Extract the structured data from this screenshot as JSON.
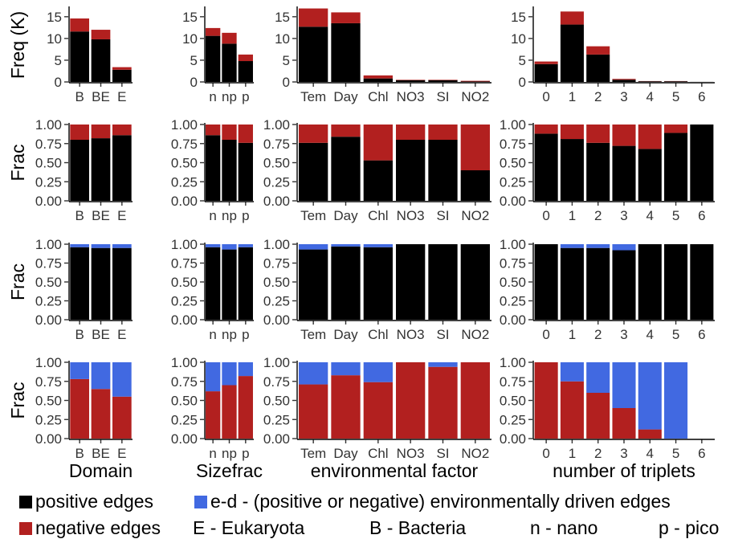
{
  "colors": {
    "positive": "#000000",
    "negative": "#b2201f",
    "env": "#4169e1"
  },
  "chart_data": {
    "type": "bar",
    "layout": "faceted stacked bar grid (4 rows x 4 columns)",
    "grid": false,
    "row_labels": [
      "Freq (K)",
      "Frac",
      "Frac",
      "Frac"
    ],
    "panels": [
      {
        "row": 0,
        "col": 0,
        "categories": [
          "B",
          "BE",
          "E"
        ],
        "ylim": [
          0,
          17
        ],
        "yticks": [
          0,
          5,
          10,
          15
        ],
        "series": [
          {
            "name": "positive edges",
            "values": [
              11.6,
              9.8,
              2.8
            ]
          },
          {
            "name": "negative edges",
            "values": [
              3.0,
              2.2,
              0.6
            ]
          }
        ]
      },
      {
        "row": 0,
        "col": 1,
        "categories": [
          "n",
          "np",
          "p"
        ],
        "ylim": [
          0,
          17
        ],
        "yticks": [
          0,
          5,
          10,
          15
        ],
        "series": [
          {
            "name": "positive edges",
            "values": [
              10.6,
              8.8,
              4.8
            ]
          },
          {
            "name": "negative edges",
            "values": [
              1.8,
              2.5,
              1.5
            ]
          }
        ]
      },
      {
        "row": 0,
        "col": 2,
        "categories": [
          "Tem",
          "Day",
          "Chl",
          "NO3",
          "SI",
          "NO2"
        ],
        "ylim": [
          0,
          17
        ],
        "yticks": [
          0,
          5,
          10,
          15
        ],
        "series": [
          {
            "name": "positive edges",
            "values": [
              12.7,
              13.5,
              0.8,
              0.4,
              0.4,
              0.1
            ]
          },
          {
            "name": "negative edges",
            "values": [
              4.2,
              2.5,
              0.7,
              0.1,
              0.1,
              0.15
            ]
          }
        ]
      },
      {
        "row": 0,
        "col": 3,
        "categories": [
          "0",
          "1",
          "2",
          "3",
          "4",
          "5",
          "6"
        ],
        "ylim": [
          0,
          17
        ],
        "yticks": [
          0,
          5,
          10,
          15
        ],
        "series": [
          {
            "name": "positive edges",
            "values": [
              4.1,
              13.2,
              6.3,
              0.5,
              0.15,
              0.15,
              0.02
            ]
          },
          {
            "name": "negative edges",
            "values": [
              0.6,
              3.0,
              1.9,
              0.2,
              0.05,
              0.05,
              0.0
            ]
          }
        ]
      },
      {
        "row": 1,
        "col": 0,
        "categories": [
          "B",
          "BE",
          "E"
        ],
        "ylim": [
          0,
          1
        ],
        "yticks": [
          "0.00",
          "0.25",
          "0.50",
          "0.75",
          "1.00"
        ],
        "series": [
          {
            "name": "positive edges",
            "values": [
              0.8,
              0.82,
              0.86
            ]
          },
          {
            "name": "negative edges",
            "values": [
              0.2,
              0.18,
              0.14
            ]
          }
        ]
      },
      {
        "row": 1,
        "col": 1,
        "categories": [
          "n",
          "np",
          "p"
        ],
        "ylim": [
          0,
          1
        ],
        "yticks": [
          "0.00",
          "0.25",
          "0.50",
          "0.75",
          "1.00"
        ],
        "series": [
          {
            "name": "positive edges",
            "values": [
              0.86,
              0.8,
              0.76
            ]
          },
          {
            "name": "negative edges",
            "values": [
              0.14,
              0.2,
              0.24
            ]
          }
        ]
      },
      {
        "row": 1,
        "col": 2,
        "categories": [
          "Tem",
          "Day",
          "Chl",
          "NO3",
          "SI",
          "NO2"
        ],
        "ylim": [
          0,
          1
        ],
        "yticks": [
          "0.00",
          "0.25",
          "0.50",
          "0.75",
          "1.00"
        ],
        "series": [
          {
            "name": "positive edges",
            "values": [
              0.76,
              0.84,
              0.53,
              0.8,
              0.8,
              0.4
            ]
          },
          {
            "name": "negative edges",
            "values": [
              0.24,
              0.16,
              0.47,
              0.2,
              0.2,
              0.6
            ]
          }
        ]
      },
      {
        "row": 1,
        "col": 3,
        "categories": [
          "0",
          "1",
          "2",
          "3",
          "4",
          "5",
          "6"
        ],
        "ylim": [
          0,
          1
        ],
        "yticks": [
          "0.00",
          "0.25",
          "0.50",
          "0.75",
          "1.00"
        ],
        "series": [
          {
            "name": "positive edges",
            "values": [
              0.88,
              0.81,
              0.76,
              0.72,
              0.68,
              0.89,
              1.0
            ]
          },
          {
            "name": "negative edges",
            "values": [
              0.12,
              0.19,
              0.24,
              0.28,
              0.32,
              0.11,
              0.0
            ]
          }
        ]
      },
      {
        "row": 2,
        "col": 0,
        "categories": [
          "B",
          "BE",
          "E"
        ],
        "ylim": [
          0,
          1
        ],
        "yticks": [
          "0.00",
          "0.25",
          "0.50",
          "0.75",
          "1.00"
        ],
        "series": [
          {
            "name": "positive edges",
            "values": [
              0.96,
              0.95,
              0.95
            ]
          },
          {
            "name": "e-d - (positive or negative) environmentally driven edges",
            "values": [
              0.04,
              0.05,
              0.05
            ]
          }
        ]
      },
      {
        "row": 2,
        "col": 1,
        "categories": [
          "n",
          "np",
          "p"
        ],
        "ylim": [
          0,
          1
        ],
        "yticks": [
          "0.00",
          "0.25",
          "0.50",
          "0.75",
          "1.00"
        ],
        "series": [
          {
            "name": "positive edges",
            "values": [
              0.96,
              0.93,
              0.96
            ]
          },
          {
            "name": "e-d - (positive or negative) environmentally driven edges",
            "values": [
              0.04,
              0.07,
              0.04
            ]
          }
        ]
      },
      {
        "row": 2,
        "col": 2,
        "categories": [
          "Tem",
          "Day",
          "Chl",
          "NO3",
          "SI",
          "NO2"
        ],
        "ylim": [
          0,
          1
        ],
        "yticks": [
          "0.00",
          "0.25",
          "0.50",
          "0.75",
          "1.00"
        ],
        "series": [
          {
            "name": "positive edges",
            "values": [
              0.93,
              0.97,
              0.96,
              1.0,
              1.0,
              1.0
            ]
          },
          {
            "name": "e-d - (positive or negative) environmentally driven edges",
            "values": [
              0.07,
              0.03,
              0.04,
              0.0,
              0.0,
              0.0
            ]
          }
        ]
      },
      {
        "row": 2,
        "col": 3,
        "categories": [
          "0",
          "1",
          "2",
          "3",
          "4",
          "5",
          "6"
        ],
        "ylim": [
          0,
          1
        ],
        "yticks": [
          "0.00",
          "0.25",
          "0.50",
          "0.75",
          "1.00"
        ],
        "series": [
          {
            "name": "positive edges",
            "values": [
              1.0,
              0.95,
              0.95,
              0.92,
              1.0,
              1.0,
              1.0
            ]
          },
          {
            "name": "e-d - (positive or negative) environmentally driven edges",
            "values": [
              0.0,
              0.05,
              0.05,
              0.08,
              0.0,
              0.0,
              0.0
            ]
          }
        ]
      },
      {
        "row": 3,
        "col": 0,
        "categories": [
          "B",
          "BE",
          "E"
        ],
        "ylim": [
          0,
          1
        ],
        "yticks": [
          "0.00",
          "0.25",
          "0.50",
          "0.75",
          "1.00"
        ],
        "xlabel": "Domain",
        "series": [
          {
            "name": "negative edges",
            "values": [
              0.78,
              0.65,
              0.55
            ]
          },
          {
            "name": "e-d - (positive or negative) environmentally driven edges",
            "values": [
              0.22,
              0.35,
              0.45
            ]
          }
        ]
      },
      {
        "row": 3,
        "col": 1,
        "categories": [
          "n",
          "np",
          "p"
        ],
        "ylim": [
          0,
          1
        ],
        "yticks": [
          "0.00",
          "0.25",
          "0.50",
          "0.75",
          "1.00"
        ],
        "xlabel": "Sizefrac",
        "series": [
          {
            "name": "negative edges",
            "values": [
              0.62,
              0.7,
              0.82
            ]
          },
          {
            "name": "e-d - (positive or negative) environmentally driven edges",
            "values": [
              0.38,
              0.3,
              0.18
            ]
          }
        ]
      },
      {
        "row": 3,
        "col": 2,
        "categories": [
          "Tem",
          "Day",
          "Chl",
          "NO3",
          "SI",
          "NO2"
        ],
        "ylim": [
          0,
          1
        ],
        "yticks": [
          "0.00",
          "0.25",
          "0.50",
          "0.75",
          "1.00"
        ],
        "xlabel": "environmental factor",
        "series": [
          {
            "name": "negative edges",
            "values": [
              0.71,
              0.83,
              0.74,
              1.0,
              0.94,
              1.0
            ]
          },
          {
            "name": "e-d - (positive or negative) environmentally driven edges",
            "values": [
              0.29,
              0.17,
              0.26,
              0.0,
              0.06,
              0.0
            ]
          }
        ]
      },
      {
        "row": 3,
        "col": 3,
        "categories": [
          "0",
          "1",
          "2",
          "3",
          "4",
          "5",
          "6"
        ],
        "ylim": [
          0,
          1
        ],
        "yticks": [
          "0.00",
          "0.25",
          "0.50",
          "0.75",
          "1.00"
        ],
        "xlabel": "number of triplets",
        "series": [
          {
            "name": "negative edges",
            "values": [
              1.0,
              0.75,
              0.6,
              0.4,
              0.12,
              0.0,
              0.0
            ]
          },
          {
            "name": "e-d - (positive or negative) environmentally driven edges",
            "values": [
              0.0,
              0.25,
              0.4,
              0.6,
              0.88,
              1.0,
              0.0
            ]
          }
        ]
      }
    ]
  },
  "legend": {
    "positive": "positive edges",
    "negative": "negative edges",
    "env": "e-d - (positive or negative) environmentally driven edges",
    "abbrev": [
      "E - Eukaryota",
      "B - Bacteria",
      "n - nano",
      "p - pico"
    ]
  }
}
